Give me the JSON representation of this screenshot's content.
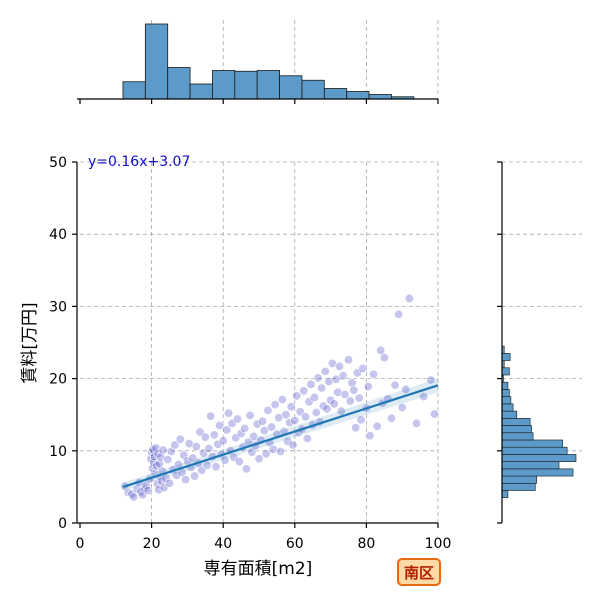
{
  "chart_data": {
    "type": "scatter",
    "xlabel": "専有面積[m2]",
    "ylabel": "賃料[万円]",
    "xlim": [
      0,
      100
    ],
    "ylim": [
      0,
      50
    ],
    "xticks": [
      0,
      20,
      40,
      60,
      80,
      100
    ],
    "yticks": [
      0,
      10,
      20,
      30,
      40,
      50
    ],
    "grid": true,
    "regression": {
      "label": "y=0.16x+3.07",
      "slope": 0.16,
      "intercept": 3.07,
      "x_range": [
        12,
        100
      ]
    },
    "region_badge": "南区",
    "colors": {
      "points": "#4a4ac8",
      "line": "#1f77b4",
      "hist": "#5b9ac9",
      "equation": "#1010c8",
      "badge_border": "#e86a10",
      "badge_fill": "#ffd9a6",
      "badge_text": "#b02000"
    },
    "x_histogram": {
      "bin_edges": [
        12,
        18.25,
        24.5,
        30.75,
        37,
        43.25,
        49.5,
        55.75,
        62,
        68.25,
        74.5,
        80.75,
        87,
        93.25
      ],
      "heights": [
        0.23,
        1.0,
        0.42,
        0.2,
        0.38,
        0.37,
        0.38,
        0.31,
        0.25,
        0.14,
        0.1,
        0.06,
        0.03
      ]
    },
    "y_histogram": {
      "bin_edges": [
        3.5,
        4.5,
        5.5,
        6.5,
        7.5,
        8.5,
        9.5,
        10.5,
        11.5,
        12.5,
        13.5,
        14.5,
        15.5,
        16.5,
        17.5,
        18.5,
        19.5,
        20.5,
        21.5,
        22.5,
        23.5,
        24.5
      ],
      "heights": [
        0.08,
        0.45,
        0.47,
        0.96,
        0.77,
        1.0,
        0.88,
        0.82,
        0.42,
        0.4,
        0.38,
        0.2,
        0.15,
        0.12,
        0.1,
        0.08,
        0.02,
        0.1,
        0.03,
        0.11,
        0.03,
        0.02
      ]
    },
    "points": [
      [
        12.5,
        5.1
      ],
      [
        13.5,
        4.2
      ],
      [
        14.5,
        4.0
      ],
      [
        15.0,
        3.6
      ],
      [
        16.0,
        4.7
      ],
      [
        16.5,
        5.6
      ],
      [
        17.0,
        4.3
      ],
      [
        17.5,
        3.9
      ],
      [
        18.0,
        4.8
      ],
      [
        18.5,
        5.2
      ],
      [
        19.0,
        4.5
      ],
      [
        19.5,
        6.1
      ],
      [
        19.8,
        8.9
      ],
      [
        20.0,
        9.8
      ],
      [
        20.2,
        7.6
      ],
      [
        20.4,
        10.2
      ],
      [
        20.6,
        8.4
      ],
      [
        20.8,
        9.2
      ],
      [
        21.0,
        6.8
      ],
      [
        21.2,
        10.4
      ],
      [
        21.4,
        7.9
      ],
      [
        21.6,
        5.4
      ],
      [
        21.8,
        9.6
      ],
      [
        22.0,
        4.6
      ],
      [
        22.2,
        8.2
      ],
      [
        22.4,
        6.4
      ],
      [
        22.6,
        9.1
      ],
      [
        22.8,
        5.8
      ],
      [
        23.0,
        7.2
      ],
      [
        23.2,
        10.1
      ],
      [
        23.5,
        4.9
      ],
      [
        24.0,
        6.2
      ],
      [
        24.5,
        8.8
      ],
      [
        25.0,
        5.5
      ],
      [
        25.5,
        9.9
      ],
      [
        26.0,
        7.4
      ],
      [
        26.5,
        10.8
      ],
      [
        27.0,
        6.6
      ],
      [
        27.5,
        8.1
      ],
      [
        28.0,
        11.6
      ],
      [
        28.5,
        7.0
      ],
      [
        29.0,
        9.4
      ],
      [
        29.5,
        6.0
      ],
      [
        30.0,
        8.6
      ],
      [
        30.5,
        11.0
      ],
      [
        31.0,
        7.7
      ],
      [
        31.5,
        9.0
      ],
      [
        32.0,
        6.5
      ],
      [
        32.5,
        10.6
      ],
      [
        33.0,
        8.3
      ],
      [
        33.5,
        12.6
      ],
      [
        34.0,
        7.3
      ],
      [
        34.5,
        9.7
      ],
      [
        35.0,
        11.9
      ],
      [
        35.5,
        8.0
      ],
      [
        36.0,
        10.3
      ],
      [
        36.5,
        14.8
      ],
      [
        37.0,
        9.2
      ],
      [
        37.5,
        12.2
      ],
      [
        38.0,
        7.8
      ],
      [
        38.5,
        10.9
      ],
      [
        39.0,
        13.5
      ],
      [
        39.5,
        9.5
      ],
      [
        40.0,
        11.4
      ],
      [
        40.5,
        8.7
      ],
      [
        41.0,
        12.9
      ],
      [
        41.5,
        15.2
      ],
      [
        42.0,
        10.0
      ],
      [
        42.5,
        13.8
      ],
      [
        43.0,
        9.1
      ],
      [
        43.5,
        11.8
      ],
      [
        44.0,
        14.4
      ],
      [
        44.5,
        8.5
      ],
      [
        45.0,
        12.4
      ],
      [
        45.5,
        10.5
      ],
      [
        46.0,
        13.1
      ],
      [
        46.5,
        7.5
      ],
      [
        47.0,
        11.2
      ],
      [
        47.5,
        14.9
      ],
      [
        48.0,
        9.8
      ],
      [
        48.5,
        12.0
      ],
      [
        49.0,
        10.7
      ],
      [
        49.5,
        13.7
      ],
      [
        50.0,
        8.9
      ],
      [
        50.5,
        11.5
      ],
      [
        51.0,
        14.1
      ],
      [
        51.5,
        12.8
      ],
      [
        52.0,
        9.6
      ],
      [
        52.5,
        15.6
      ],
      [
        53.0,
        11.1
      ],
      [
        53.5,
        13.3
      ],
      [
        54.0,
        10.2
      ],
      [
        54.5,
        16.4
      ],
      [
        55.0,
        12.3
      ],
      [
        55.5,
        14.6
      ],
      [
        56.0,
        9.9
      ],
      [
        56.5,
        17.1
      ],
      [
        57.0,
        12.7
      ],
      [
        57.5,
        15.0
      ],
      [
        58.0,
        11.3
      ],
      [
        58.5,
        13.9
      ],
      [
        59.0,
        16.1
      ],
      [
        59.5,
        10.8
      ],
      [
        60.0,
        14.2
      ],
      [
        60.5,
        17.6
      ],
      [
        61.0,
        12.5
      ],
      [
        61.5,
        15.4
      ],
      [
        62.0,
        13.0
      ],
      [
        62.5,
        18.3
      ],
      [
        63.0,
        14.7
      ],
      [
        63.5,
        11.7
      ],
      [
        64.0,
        16.8
      ],
      [
        64.5,
        19.2
      ],
      [
        65.0,
        13.6
      ],
      [
        65.5,
        17.4
      ],
      [
        66.0,
        15.3
      ],
      [
        66.5,
        20.1
      ],
      [
        67.0,
        14.0
      ],
      [
        67.5,
        18.7
      ],
      [
        68.0,
        16.2
      ],
      [
        68.5,
        21.0
      ],
      [
        69.0,
        15.8
      ],
      [
        69.5,
        19.6
      ],
      [
        70.0,
        17.0
      ],
      [
        70.5,
        22.1
      ],
      [
        71.0,
        16.5
      ],
      [
        71.5,
        19.9
      ],
      [
        72.0,
        18.1
      ],
      [
        72.5,
        21.7
      ],
      [
        73.0,
        15.5
      ],
      [
        73.5,
        20.4
      ],
      [
        74.0,
        17.8
      ],
      [
        75.0,
        22.6
      ],
      [
        75.5,
        16.9
      ],
      [
        76.0,
        19.4
      ],
      [
        76.5,
        18.4
      ],
      [
        77.0,
        13.2
      ],
      [
        77.5,
        20.8
      ],
      [
        78.0,
        17.3
      ],
      [
        78.5,
        14.3
      ],
      [
        79.0,
        21.4
      ],
      [
        80.0,
        15.9
      ],
      [
        80.5,
        18.9
      ],
      [
        81.0,
        12.1
      ],
      [
        82.0,
        20.6
      ],
      [
        83.0,
        13.4
      ],
      [
        84.0,
        23.9
      ],
      [
        84.5,
        16.6
      ],
      [
        85.0,
        22.9
      ],
      [
        86.0,
        17.2
      ],
      [
        87.0,
        14.5
      ],
      [
        88.0,
        19.1
      ],
      [
        89.0,
        28.9
      ],
      [
        90.0,
        16.0
      ],
      [
        91.0,
        18.5
      ],
      [
        92.0,
        31.1
      ],
      [
        94.0,
        13.8
      ],
      [
        96.0,
        17.5
      ],
      [
        98.0,
        19.8
      ],
      [
        99.0,
        15.1
      ]
    ]
  }
}
